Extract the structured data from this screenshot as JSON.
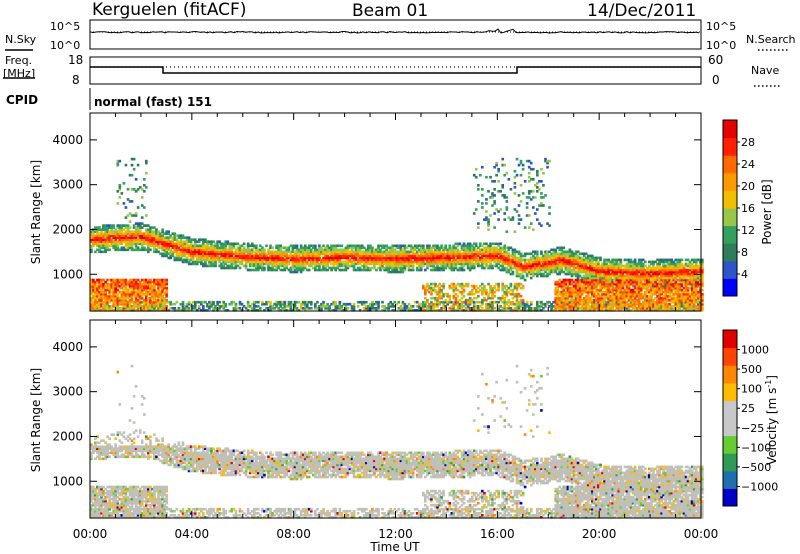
{
  "header": {
    "station": "Kerguelen (fitACF)",
    "beam": "Beam 01",
    "date": "14/Dec/2011"
  },
  "top_panels": {
    "nsky_label": "N.Sky",
    "nsky_ticks": [
      "10^5",
      "10^0"
    ],
    "nsearch_label": "N.Search",
    "nsearch_ticks": [
      "10^5",
      "10^0"
    ],
    "freq_label_1": "Freq.",
    "freq_label_2": "[MHz]",
    "freq_ticks": [
      "18",
      "8"
    ],
    "nave_label": "Nave",
    "nave_ticks": [
      "60",
      "0"
    ],
    "cpid_label": "CPID",
    "cpid_value": "normal (fast) 151"
  },
  "colors": {
    "power_scale": [
      "#0000ff",
      "#2b55c8",
      "#2e7d5b",
      "#33a060",
      "#97c64b",
      "#f0c000",
      "#ff9900",
      "#ff6a00",
      "#ff2000",
      "#e60000"
    ],
    "velocity_scale": [
      "#0000c8",
      "#1f6fb0",
      "#2e9a55",
      "#66cc33",
      "#c8c8c8",
      "#c8c8c8",
      "#ffbb00",
      "#ff8800",
      "#ff4400",
      "#e00000"
    ],
    "ground_scatter": "#c0c0b8"
  },
  "chart_data": [
    {
      "type": "heatmap",
      "title": "Power",
      "xlabel": "",
      "ylabel": "Slant Range [km]",
      "x_ticks": [
        "00:00",
        "04:00",
        "08:00",
        "12:00",
        "16:00",
        "20:00",
        "00:00"
      ],
      "xlim_hours": [
        0,
        24
      ],
      "y_ticks": [
        "4000",
        "3000",
        "2000",
        "1000"
      ],
      "ylim_km": [
        180,
        4600
      ],
      "colorbar_label": "Power [dB]",
      "colorbar_ticks": [
        "28",
        "24",
        "20",
        "16",
        "12",
        "8",
        "4"
      ],
      "colorbar_range": [
        0,
        30
      ],
      "echo_band": {
        "center_km_by_hour": [
          [
            0,
            1750
          ],
          [
            1,
            1800
          ],
          [
            2,
            1820
          ],
          [
            3,
            1650
          ],
          [
            4,
            1480
          ],
          [
            6,
            1380
          ],
          [
            8,
            1330
          ],
          [
            10,
            1360
          ],
          [
            12,
            1330
          ],
          [
            14,
            1360
          ],
          [
            16,
            1400
          ],
          [
            17,
            1150
          ],
          [
            18.5,
            1300
          ],
          [
            20,
            1050
          ],
          [
            22,
            1000
          ],
          [
            24,
            1050
          ]
        ]
      }
    },
    {
      "type": "heatmap",
      "title": "Velocity",
      "xlabel": "Time UT",
      "ylabel": "Slant Range [km]",
      "x_ticks": [
        "00:00",
        "04:00",
        "08:00",
        "12:00",
        "16:00",
        "20:00",
        "00:00"
      ],
      "xlim_hours": [
        0,
        24
      ],
      "y_ticks": [
        "4000",
        "3000",
        "2000",
        "1000"
      ],
      "ylim_km": [
        180,
        4600
      ],
      "colorbar_label": "Velocity [m s⁻¹]",
      "colorbar_ticks": [
        "1000",
        "500",
        "100",
        "25",
        "−25",
        "−100",
        "−500",
        "−1000"
      ],
      "colorbar_range": [
        -1000,
        1000
      ]
    }
  ],
  "axes_labels": {
    "panel1_ylabel": "Slant Range [km]",
    "panel2_ylabel": "Slant Range [km]",
    "panel1_cbar": "Power [dB]",
    "panel2_cbar_main": "Velocity [m s",
    "panel2_cbar_exp": "-1",
    "panel2_cbar_end": "]",
    "time_axis": "Time UT"
  }
}
